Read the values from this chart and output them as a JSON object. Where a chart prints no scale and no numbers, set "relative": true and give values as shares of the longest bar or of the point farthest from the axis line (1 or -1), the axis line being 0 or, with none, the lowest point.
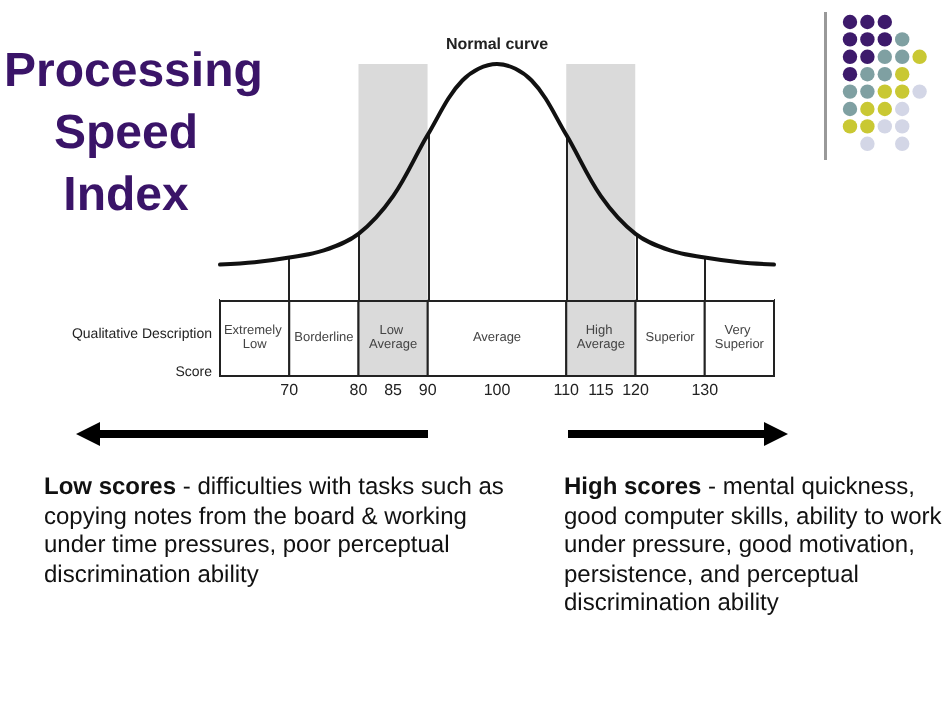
{
  "chart_data": {
    "type": "line",
    "title": "Processing Speed Index",
    "relative": true,
    "x": [
      60,
      65,
      70,
      75,
      80,
      85,
      90,
      95,
      100,
      105,
      110,
      115,
      120,
      125,
      130,
      135,
      140
    ],
    "series": [
      {
        "name": "Normal curve",
        "color": "#111111",
        "values": [
          0.15,
          0.16,
          0.18,
          0.21,
          0.28,
          0.44,
          0.7,
          0.93,
          1,
          0.93,
          0.7,
          0.44,
          0.28,
          0.21,
          0.18,
          0.16,
          0.15
        ]
      }
    ],
    "xlim": [
      60,
      140
    ],
    "xticks": [
      70,
      80,
      85,
      90,
      100,
      110,
      115,
      120,
      130
    ],
    "bands": [
      {
        "axis": "x",
        "from": 60,
        "to": 70,
        "label": "Extremely Low",
        "color": "#ffffff"
      },
      {
        "axis": "x",
        "from": 70,
        "to": 80,
        "label": "Borderline",
        "color": "#ffffff"
      },
      {
        "axis": "x",
        "from": 80,
        "to": 90,
        "label": "Low Average",
        "color": "#dadada"
      },
      {
        "axis": "x",
        "from": 90,
        "to": 110,
        "label": "Average",
        "color": "#ffffff"
      },
      {
        "axis": "x",
        "from": 110,
        "to": 120,
        "label": "High Average",
        "color": "#dadada"
      },
      {
        "axis": "x",
        "from": 120,
        "to": 130,
        "label": "Superior",
        "color": "#ffffff"
      },
      {
        "axis": "x",
        "from": 130,
        "to": 140,
        "label": "Very Superior",
        "color": "#ffffff"
      }
    ],
    "annotations": [
      "Qualitative Description",
      "Score",
      "Low scores - difficulties with tasks such as copying notes from the board & working under time pressures, poor perceptual discrimination ability",
      "High scores - mental quickness, good computer skills, ability to work under pressure, good motivation, persistence, and perceptual discrimination ability"
    ],
    "ref_lines": [
      {
        "axis": "x",
        "value": 70,
        "color": "#222222"
      },
      {
        "axis": "x",
        "value": 80,
        "color": "#222222"
      },
      {
        "axis": "x",
        "value": 90,
        "color": "#222222"
      },
      {
        "axis": "x",
        "value": 110,
        "color": "#222222"
      },
      {
        "axis": "x",
        "value": 120,
        "color": "#222222"
      },
      {
        "axis": "x",
        "value": 130,
        "color": "#222222"
      }
    ],
    "marker": "none",
    "line_style": "solid",
    "grid": false,
    "legend": false
  }
}
